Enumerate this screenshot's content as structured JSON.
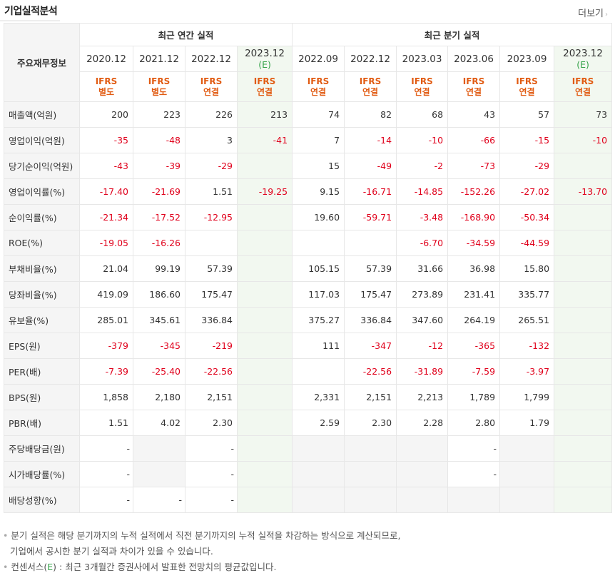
{
  "section_title": "기업실적분석",
  "more_label": "더보기",
  "more_arrow": "›",
  "header": {
    "row_label": "주요재무정보",
    "annual_group": "최근 연간 실적",
    "quarterly_group": "최근 분기 실적",
    "periods": [
      {
        "date": "2020.12",
        "est": "",
        "ifrs1": "IFRS",
        "ifrs2": "별도"
      },
      {
        "date": "2021.12",
        "est": "",
        "ifrs1": "IFRS",
        "ifrs2": "별도"
      },
      {
        "date": "2022.12",
        "est": "",
        "ifrs1": "IFRS",
        "ifrs2": "연결"
      },
      {
        "date": "2023.12",
        "est": "(E)",
        "ifrs1": "IFRS",
        "ifrs2": "연결"
      },
      {
        "date": "2022.09",
        "est": "",
        "ifrs1": "IFRS",
        "ifrs2": "연결"
      },
      {
        "date": "2022.12",
        "est": "",
        "ifrs1": "IFRS",
        "ifrs2": "연결"
      },
      {
        "date": "2023.03",
        "est": "",
        "ifrs1": "IFRS",
        "ifrs2": "연결"
      },
      {
        "date": "2023.06",
        "est": "",
        "ifrs1": "IFRS",
        "ifrs2": "연결"
      },
      {
        "date": "2023.09",
        "est": "",
        "ifrs1": "IFRS",
        "ifrs2": "연결"
      },
      {
        "date": "2023.12",
        "est": "(E)",
        "ifrs1": "IFRS",
        "ifrs2": "연결"
      }
    ]
  },
  "rows": [
    {
      "label": "매출액(억원)",
      "values": [
        "200",
        "223",
        "226",
        "213",
        "74",
        "82",
        "68",
        "43",
        "57",
        "73"
      ]
    },
    {
      "label": "영업이익(억원)",
      "values": [
        "-35",
        "-48",
        "3",
        "-41",
        "7",
        "-14",
        "-10",
        "-66",
        "-15",
        "-10"
      ]
    },
    {
      "label": "당기순이익(억원)",
      "values": [
        "-43",
        "-39",
        "-29",
        "",
        "15",
        "-49",
        "-2",
        "-73",
        "-29",
        ""
      ]
    },
    {
      "label": "영업이익률(%)",
      "values": [
        "-17.40",
        "-21.69",
        "1.51",
        "-19.25",
        "9.15",
        "-16.71",
        "-14.85",
        "-152.26",
        "-27.02",
        "-13.70"
      ]
    },
    {
      "label": "순이익률(%)",
      "values": [
        "-21.34",
        "-17.52",
        "-12.95",
        "",
        "19.60",
        "-59.71",
        "-3.48",
        "-168.90",
        "-50.34",
        ""
      ]
    },
    {
      "label": "ROE(%)",
      "values": [
        "-19.05",
        "-16.26",
        "",
        "",
        "",
        "",
        "-6.70",
        "-34.59",
        "-44.59",
        ""
      ]
    },
    {
      "label": "부채비율(%)",
      "values": [
        "21.04",
        "99.19",
        "57.39",
        "",
        "105.15",
        "57.39",
        "31.66",
        "36.98",
        "15.80",
        ""
      ]
    },
    {
      "label": "당좌비율(%)",
      "values": [
        "419.09",
        "186.60",
        "175.47",
        "",
        "117.03",
        "175.47",
        "273.89",
        "231.41",
        "335.77",
        ""
      ]
    },
    {
      "label": "유보율(%)",
      "values": [
        "285.01",
        "345.61",
        "336.84",
        "",
        "375.27",
        "336.84",
        "347.60",
        "264.19",
        "265.51",
        ""
      ]
    },
    {
      "label": "EPS(원)",
      "values": [
        "-379",
        "-345",
        "-219",
        "",
        "111",
        "-347",
        "-12",
        "-365",
        "-132",
        ""
      ]
    },
    {
      "label": "PER(배)",
      "values": [
        "-7.39",
        "-25.40",
        "-22.56",
        "",
        "",
        "-22.56",
        "-31.89",
        "-7.59",
        "-3.97",
        ""
      ]
    },
    {
      "label": "BPS(원)",
      "values": [
        "1,858",
        "2,180",
        "2,151",
        "",
        "2,331",
        "2,151",
        "2,213",
        "1,789",
        "1,799",
        ""
      ]
    },
    {
      "label": "PBR(배)",
      "values": [
        "1.51",
        "4.02",
        "2.30",
        "",
        "2.59",
        "2.30",
        "2.28",
        "2.80",
        "1.79",
        ""
      ]
    },
    {
      "label": "주당배당금(원)",
      "values": [
        "-",
        "",
        "-",
        "",
        "",
        "",
        "",
        "-",
        "",
        ""
      ]
    },
    {
      "label": "시가배당률(%)",
      "values": [
        "-",
        "",
        "-",
        "",
        "",
        "",
        "",
        "-",
        "",
        ""
      ]
    },
    {
      "label": "배당성향(%)",
      "values": [
        "-",
        "-",
        "-",
        "",
        "",
        "",
        "",
        "",
        "",
        ""
      ]
    }
  ],
  "gray_cells": {
    "13": [
      1,
      4,
      5,
      6,
      8
    ],
    "14": [
      1,
      4,
      5,
      6,
      8
    ],
    "15": [
      4,
      5,
      6,
      7,
      8
    ]
  },
  "notes": {
    "bullet": "•",
    "line1": "분기 실적은 해당 분기까지의 누적 실적에서 직전 분기까지의 누적 실적을 차감하는 방식으로 계산되므로,",
    "line2": "기업에서 공시한 분기 실적과 차이가 있을 수 있습니다.",
    "line3_pre": "컨센서스(",
    "line3_e": "E",
    "line3_post": ") : 최근 3개월간 증권사에서 발표한 전망치의 평균값입니다."
  }
}
